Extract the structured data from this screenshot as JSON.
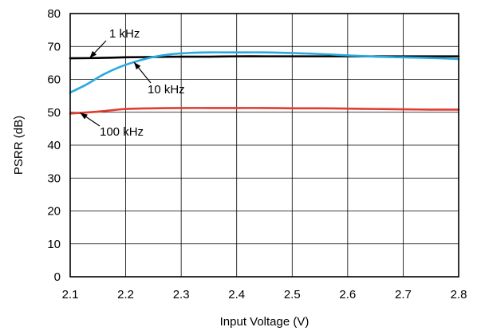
{
  "chart_data": {
    "type": "line",
    "title": "",
    "xlabel": "Input Voltage (V)",
    "ylabel": "PSRR (dB)",
    "xlim": [
      2.1,
      2.8
    ],
    "ylim": [
      0,
      80
    ],
    "x_ticks": [
      "2.1",
      "2.2",
      "2.3",
      "2.4",
      "2.5",
      "2.6",
      "2.7",
      "2.8"
    ],
    "y_ticks": [
      "0",
      "10",
      "20",
      "30",
      "40",
      "50",
      "60",
      "70",
      "80"
    ],
    "grid": true,
    "legend": "none",
    "series": [
      {
        "name": "1 kHz",
        "color": "#000000",
        "x": [
          2.1,
          2.15,
          2.2,
          2.25,
          2.3,
          2.35,
          2.4,
          2.45,
          2.5,
          2.55,
          2.6,
          2.65,
          2.7,
          2.75,
          2.8
        ],
        "y": [
          66.4,
          66.5,
          66.7,
          66.8,
          66.9,
          66.9,
          67.0,
          67.0,
          67.0,
          67.0,
          67.0,
          67.0,
          67.0,
          67.0,
          67.0
        ]
      },
      {
        "name": "10 kHz",
        "color": "#29a9e0",
        "x": [
          2.1,
          2.13,
          2.16,
          2.19,
          2.22,
          2.25,
          2.28,
          2.31,
          2.35,
          2.4,
          2.45,
          2.5,
          2.55,
          2.6,
          2.65,
          2.7,
          2.75,
          2.8
        ],
        "y": [
          56.0,
          58.5,
          61.5,
          63.8,
          65.5,
          66.8,
          67.6,
          68.0,
          68.2,
          68.2,
          68.2,
          68.0,
          67.7,
          67.3,
          66.9,
          66.7,
          66.5,
          66.2
        ]
      },
      {
        "name": "100 kHz",
        "color": "#e03c31",
        "x": [
          2.1,
          2.15,
          2.2,
          2.25,
          2.3,
          2.35,
          2.4,
          2.45,
          2.5,
          2.55,
          2.6,
          2.65,
          2.7,
          2.75,
          2.8
        ],
        "y": [
          49.6,
          50.2,
          51.0,
          51.2,
          51.3,
          51.3,
          51.3,
          51.3,
          51.2,
          51.2,
          51.1,
          51.0,
          50.9,
          50.8,
          50.8
        ]
      }
    ],
    "annotations": [
      {
        "text": "1 kHz",
        "series": "1 kHz"
      },
      {
        "text": "10 kHz",
        "series": "10 kHz"
      },
      {
        "text": "100 kHz",
        "series": "100 kHz"
      }
    ]
  }
}
